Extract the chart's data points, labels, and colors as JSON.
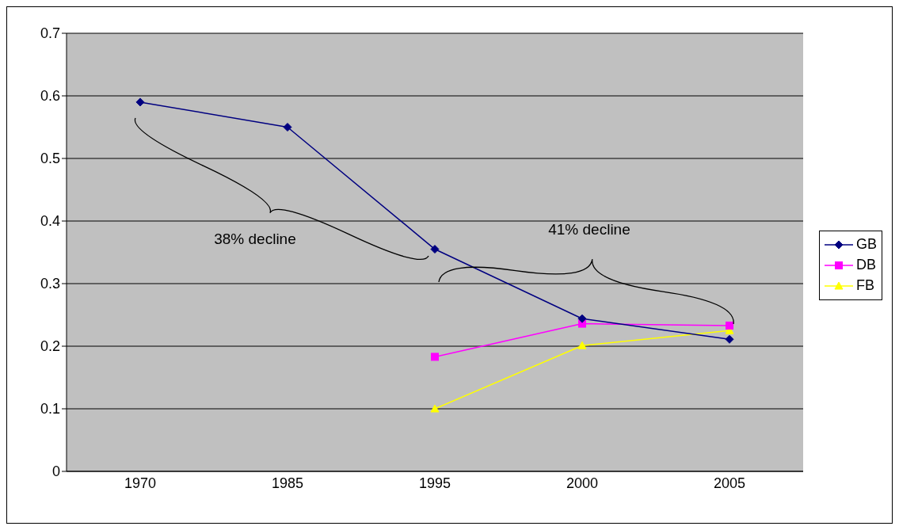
{
  "chart_data": {
    "type": "line",
    "categories": [
      "1970",
      "1985",
      "1995",
      "2000",
      "2005"
    ],
    "series": [
      {
        "name": "GB",
        "color": "#000080",
        "marker": "diamond",
        "values": [
          0.59,
          0.55,
          0.355,
          0.244,
          0.211
        ]
      },
      {
        "name": "DB",
        "color": "#ff00ff",
        "marker": "square",
        "values": [
          null,
          null,
          0.183,
          0.236,
          0.233
        ]
      },
      {
        "name": "FB",
        "color": "#ffff00",
        "marker": "triangle",
        "values": [
          null,
          null,
          0.1,
          0.201,
          0.225
        ]
      }
    ],
    "ylim": [
      0,
      0.7
    ],
    "yticks": [
      0,
      0.1,
      0.2,
      0.3,
      0.4,
      0.5,
      0.6,
      0.7
    ],
    "grid": "y",
    "legend": "right",
    "annotations": [
      "38% decline",
      "41% decline"
    ]
  }
}
